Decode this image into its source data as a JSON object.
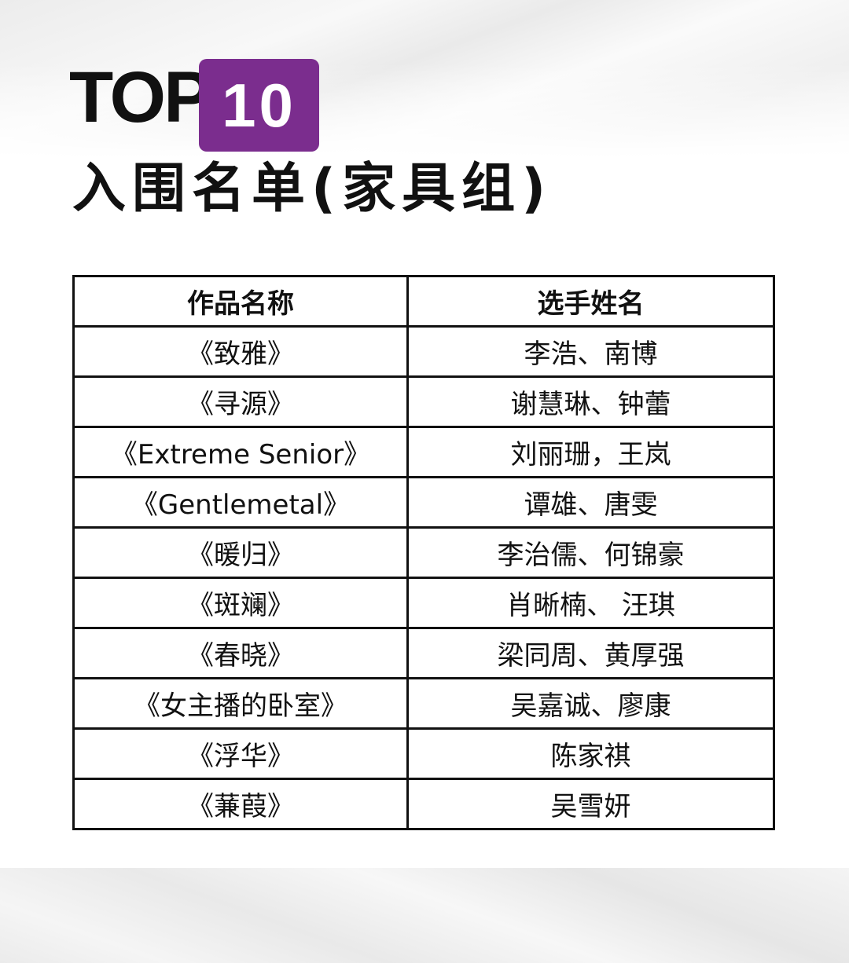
{
  "title": {
    "top": "TOP",
    "badge": "10",
    "subtitle": "入围名单(家具组)"
  },
  "colors": {
    "badge": "#7b2d8e"
  },
  "table": {
    "headers": [
      "作品名称",
      "选手姓名"
    ],
    "rows": [
      [
        "《致雅》",
        "李浩、南博"
      ],
      [
        "《寻源》",
        "谢慧琳、钟蕾"
      ],
      [
        "《Extreme Senior》",
        "刘丽珊，王岚"
      ],
      [
        "《Gentlemetal》",
        "谭雄、唐雯"
      ],
      [
        "《暖归》",
        "李治儒、何锦豪"
      ],
      [
        "《斑斓》",
        "肖晰楠、 汪琪"
      ],
      [
        "《春晓》",
        "梁同周、黄厚强"
      ],
      [
        "《女主播的卧室》",
        "吴嘉诚、廖康"
      ],
      [
        "《浮华》",
        "陈家祺"
      ],
      [
        "《蒹葭》",
        "吴雪妍"
      ]
    ]
  }
}
